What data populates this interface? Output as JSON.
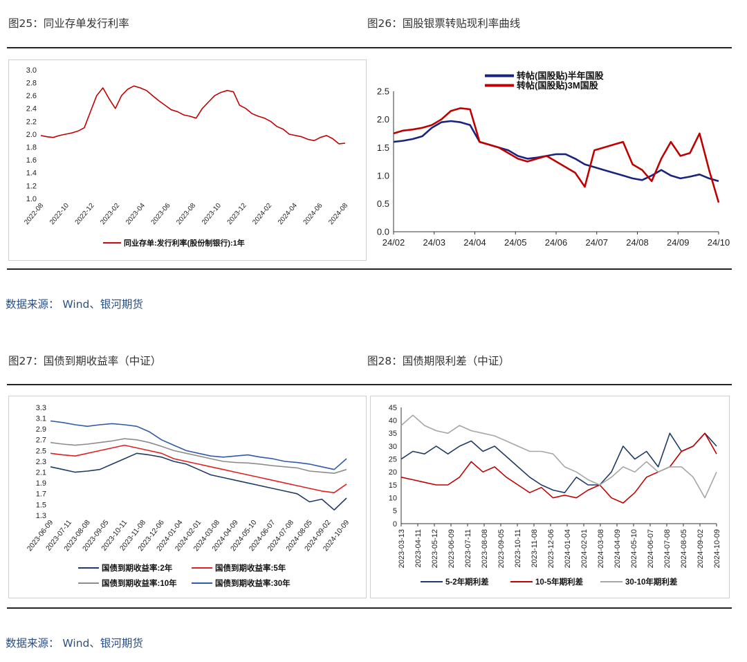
{
  "figures": {
    "fig25": {
      "title": "图25：同业存单发行利率"
    },
    "fig26": {
      "title": "图26：国股银票转贴现利率曲线"
    },
    "fig27": {
      "title": "图27：国债到期收益率（中证）"
    },
    "fig28": {
      "title": "图28：国债期限利差（中证）"
    }
  },
  "sources": {
    "top": "数据来源：  Wind、银河期货",
    "bottom": "数据来源：  Wind、银河期货"
  },
  "chart_data": [
    {
      "id": "fig25",
      "type": "line",
      "title": "同业存单发行利率",
      "ylim": [
        1.0,
        3.0
      ],
      "yticks": [
        "3.0",
        "2.8",
        "2.6",
        "2.4",
        "2.2",
        "2.0",
        "1.8",
        "1.6",
        "1.4",
        "1.2",
        "1.0"
      ],
      "xticks": [
        "2022-08",
        "2022-10",
        "2022-12",
        "2023-02",
        "2023-04",
        "2023-06",
        "2023-08",
        "2023-10",
        "2023-12",
        "2024-02",
        "2024-04",
        "2024-06",
        "2024-08"
      ],
      "series": [
        {
          "name": "同业存单:发行利率(股份制银行):1年",
          "color": "#c00000",
          "values": [
            1.98,
            1.96,
            1.95,
            1.98,
            2.0,
            2.02,
            2.05,
            2.1,
            2.35,
            2.6,
            2.72,
            2.55,
            2.4,
            2.6,
            2.7,
            2.75,
            2.72,
            2.68,
            2.6,
            2.52,
            2.45,
            2.38,
            2.35,
            2.3,
            2.28,
            2.25,
            2.4,
            2.5,
            2.6,
            2.65,
            2.68,
            2.66,
            2.45,
            2.4,
            2.32,
            2.28,
            2.25,
            2.2,
            2.12,
            2.08,
            2.0,
            1.98,
            1.96,
            1.92,
            1.9,
            1.95,
            1.98,
            1.93,
            1.85,
            1.86
          ]
        }
      ]
    },
    {
      "id": "fig26",
      "type": "line",
      "title": "国股银票转贴现利率曲线",
      "ylim": [
        0.0,
        2.5
      ],
      "yticks": [
        "2.5",
        "2.0",
        "1.5",
        "1.0",
        "0.5",
        "0.0"
      ],
      "xticks": [
        "24/02",
        "24/03",
        "24/04",
        "24/05",
        "24/06",
        "24/07",
        "24/08",
        "24/09",
        "24/10"
      ],
      "legend_position": "top-center",
      "series": [
        {
          "name": "转帖(国股贴)半年国股",
          "color": "#1a237e",
          "values": [
            1.6,
            1.62,
            1.65,
            1.7,
            1.85,
            1.95,
            1.97,
            1.95,
            1.9,
            1.6,
            1.55,
            1.5,
            1.45,
            1.35,
            1.3,
            1.32,
            1.35,
            1.38,
            1.38,
            1.3,
            1.2,
            1.15,
            1.1,
            1.05,
            1.0,
            0.95,
            0.92,
            1.0,
            1.1,
            1.0,
            0.95,
            0.98,
            1.02,
            0.95,
            0.9
          ]
        },
        {
          "name": "转帖(国股贴)3M国股",
          "color": "#c00000",
          "values": [
            1.75,
            1.8,
            1.82,
            1.85,
            1.9,
            2.0,
            2.15,
            2.2,
            2.18,
            1.6,
            1.55,
            1.5,
            1.4,
            1.3,
            1.25,
            1.3,
            1.35,
            1.25,
            1.15,
            1.05,
            0.8,
            1.45,
            1.5,
            1.55,
            1.6,
            1.2,
            1.1,
            0.9,
            1.3,
            1.6,
            1.35,
            1.4,
            1.75,
            1.1,
            0.52
          ]
        }
      ]
    },
    {
      "id": "fig27",
      "type": "line",
      "title": "国债到期收益率（中证）",
      "ylim": [
        1.3,
        3.3
      ],
      "yticks": [
        "3.3",
        "3.1",
        "2.9",
        "2.7",
        "2.5",
        "2.3",
        "2.1",
        "1.9",
        "1.7",
        "1.5",
        "1.3"
      ],
      "xticks": [
        "2023-06-09",
        "2023-07-11",
        "2023-08-08",
        "2023-09-05",
        "2023-10-11",
        "2023-11-08",
        "2023-12-06",
        "2024-01-04",
        "2024-02-01",
        "2024-03-08",
        "2024-04-09",
        "2024-05-10",
        "2024-06-07",
        "2024-07-08",
        "2024-08-05",
        "2024-09-02",
        "2024-10-09"
      ],
      "series": [
        {
          "name": "国债到期收益率:2年",
          "color": "#1f3a66",
          "values": [
            2.2,
            2.15,
            2.1,
            2.12,
            2.15,
            2.25,
            2.35,
            2.45,
            2.42,
            2.38,
            2.3,
            2.25,
            2.15,
            2.05,
            2.0,
            1.95,
            1.9,
            1.85,
            1.8,
            1.75,
            1.7,
            1.55,
            1.6,
            1.4,
            1.62
          ]
        },
        {
          "name": "国债到期收益率:5年",
          "color": "#e02020",
          "values": [
            2.45,
            2.42,
            2.4,
            2.45,
            2.5,
            2.55,
            2.6,
            2.55,
            2.5,
            2.45,
            2.35,
            2.3,
            2.25,
            2.2,
            2.15,
            2.1,
            2.05,
            2.0,
            1.95,
            1.9,
            1.85,
            1.8,
            1.75,
            1.72,
            1.88
          ]
        },
        {
          "name": "国债到期收益率:10年",
          "color": "#8c8c8c",
          "values": [
            2.65,
            2.62,
            2.6,
            2.62,
            2.65,
            2.68,
            2.72,
            2.7,
            2.65,
            2.58,
            2.5,
            2.45,
            2.4,
            2.35,
            2.3,
            2.28,
            2.27,
            2.25,
            2.22,
            2.2,
            2.18,
            2.12,
            2.1,
            2.08,
            2.15
          ]
        },
        {
          "name": "国债到期收益率:30年",
          "color": "#2e5aa8",
          "values": [
            3.05,
            3.02,
            2.98,
            2.95,
            2.98,
            3.0,
            2.98,
            2.95,
            2.85,
            2.7,
            2.6,
            2.5,
            2.45,
            2.4,
            2.38,
            2.4,
            2.42,
            2.38,
            2.35,
            2.3,
            2.28,
            2.25,
            2.2,
            2.15,
            2.35
          ]
        }
      ]
    },
    {
      "id": "fig28",
      "type": "line",
      "title": "国债期限利差（中证）",
      "ylim": [
        0,
        45
      ],
      "yticks": [
        "45",
        "40",
        "35",
        "30",
        "25",
        "20",
        "15",
        "10",
        "5",
        "0"
      ],
      "xticks": [
        "2023-03-13",
        "2023-04-11",
        "2023-05-12",
        "2023-06-09",
        "2023-07-11",
        "2023-08-08",
        "2023-09-05",
        "2023-10-11",
        "2023-11-08",
        "2023-12-06",
        "2024-01-04",
        "2024-02-01",
        "2024-03-08",
        "2024-04-09",
        "2024-05-10",
        "2024-06-07",
        "2024-07-08",
        "2024-08-05",
        "2024-09-02",
        "2024-10-09"
      ],
      "series": [
        {
          "name": "5-2年期利差",
          "color": "#1f3a66",
          "values": [
            25,
            28,
            27,
            30,
            27,
            30,
            32,
            28,
            30,
            26,
            22,
            18,
            15,
            13,
            12,
            18,
            15,
            15,
            20,
            30,
            25,
            28,
            22,
            35,
            28,
            30,
            35,
            30
          ]
        },
        {
          "name": "10-5年期利差",
          "color": "#c00000",
          "values": [
            18,
            17,
            16,
            15,
            15,
            18,
            24,
            20,
            22,
            18,
            15,
            12,
            14,
            10,
            11,
            10,
            13,
            15,
            10,
            8,
            12,
            18,
            20,
            22,
            28,
            30,
            35,
            27
          ]
        },
        {
          "name": "30-10年期利差",
          "color": "#a6a6a6",
          "values": [
            38,
            42,
            38,
            36,
            35,
            38,
            36,
            35,
            34,
            32,
            30,
            28,
            28,
            27,
            22,
            20,
            17,
            15,
            18,
            22,
            20,
            24,
            20,
            22,
            22,
            18,
            10,
            20
          ]
        }
      ]
    }
  ]
}
